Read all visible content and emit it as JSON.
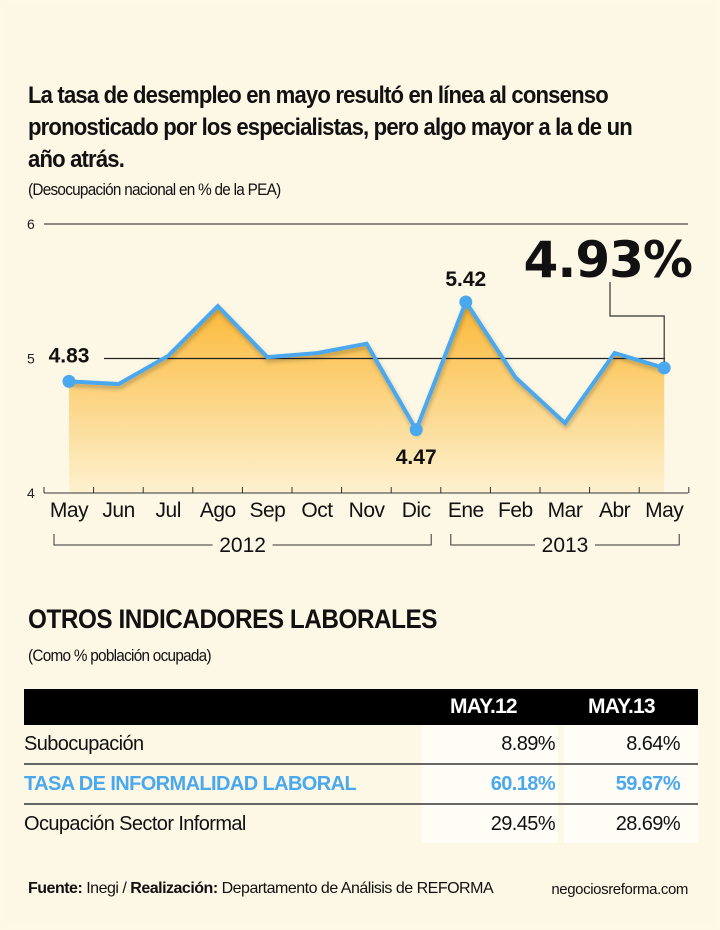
{
  "headline": "La tasa de desempleo en mayo resultó en línea al consenso pronosticado por los especialistas, pero algo mayor a la de un año atrás.",
  "subtitle": "(Desocupación nacional en % de la PEA)",
  "chart_data": {
    "type": "area",
    "title": "La tasa de desempleo en mayo resultó en línea al consenso pronosticado por los especialistas, pero algo mayor a la de un año atrás.",
    "ylabel": "(Desocupación nacional en % de la PEA)",
    "xlabel": "",
    "ylim": [
      4,
      6
    ],
    "yticks": [
      "4",
      "5",
      "6"
    ],
    "grid": true,
    "categories": [
      "May",
      "Jun",
      "Jul",
      "Ago",
      "Sep",
      "Oct",
      "Nov",
      "Dic",
      "Ene",
      "Feb",
      "Mar",
      "Abr",
      "May"
    ],
    "values": [
      4.83,
      4.81,
      5.02,
      5.39,
      5.01,
      5.04,
      5.11,
      4.47,
      5.42,
      4.86,
      4.52,
      5.04,
      4.93
    ],
    "year_groups": [
      {
        "label": "2012",
        "from": 0,
        "to": 7
      },
      {
        "label": "2013",
        "from": 8,
        "to": 12
      }
    ],
    "annotations": [
      {
        "index": 0,
        "text": "4.83"
      },
      {
        "index": 7,
        "text": "4.47"
      },
      {
        "index": 8,
        "text": "5.42"
      },
      {
        "index": 12,
        "text": "4.93%",
        "style": "callout"
      }
    ],
    "colors": {
      "line": "#4aa8ee",
      "fill_top": "#fbb836",
      "fill_bottom": "#fdf0cc",
      "grid": "#222222"
    }
  },
  "section": {
    "title": "OTROS INDICADORES LABORALES",
    "subtitle": "(Como % población ocupada)"
  },
  "table": {
    "columns": [
      "",
      "MAY.12",
      "MAY.13"
    ],
    "rows": [
      {
        "label": "Subocupación",
        "may12": "8.89%",
        "may13": "8.64%",
        "highlight": false
      },
      {
        "label": "TASA DE INFORMALIDAD LABORAL",
        "may12": "60.18%",
        "may13": "59.67%",
        "highlight": true
      },
      {
        "label": "Ocupación Sector Informal",
        "may12": "29.45%",
        "may13": "28.69%",
        "highlight": false
      }
    ]
  },
  "footer": {
    "source_label": "Fuente:",
    "source": "Inegi /",
    "credit_label": "Realización:",
    "credit": "Departamento de Análisis de REFORMA",
    "site": "negociosreforma.com"
  }
}
